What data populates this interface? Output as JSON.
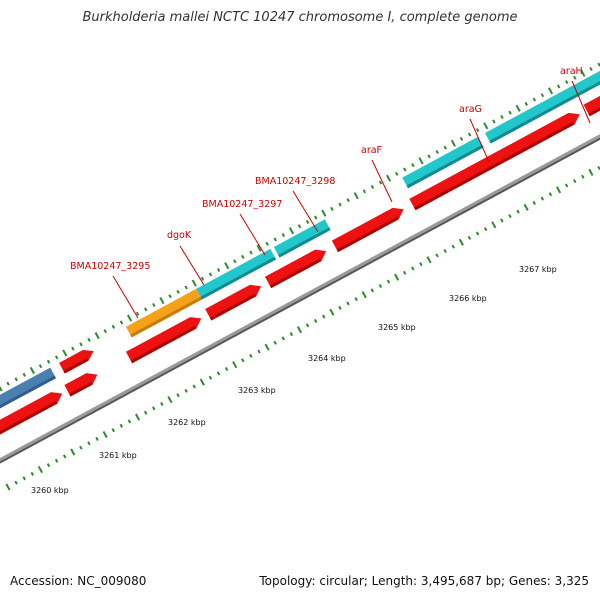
{
  "title": "Burkholderia mallei NCTC 10247 chromosome I, complete genome",
  "accession": "Accession: NC_009080",
  "stats": "Topology: circular; Length: 3,495,687 bp; Genes: 3,325",
  "colors": {
    "cds": "#ee1111",
    "cds_dark": "#aa0000",
    "gene_cyan": "#20c8cc",
    "gene_cyan_dark": "#108a90",
    "gene_orange": "#f5a11a",
    "gene_blue": "#4a7fb0",
    "backbone": "#8a8a8a",
    "tick": "#2f8a2f",
    "label": "#cc0000"
  },
  "kbp_labels": [
    "3260 kbp",
    "3261 kbp",
    "3262 kbp",
    "3263 kbp",
    "3264 kbp",
    "3265 kbp",
    "3266 kbp",
    "3267 kbp"
  ],
  "gene_labels": [
    "BMA10247_3295",
    "dgoK",
    "BMA10247_3297",
    "BMA10247_3298",
    "araF",
    "araG",
    "araH"
  ]
}
